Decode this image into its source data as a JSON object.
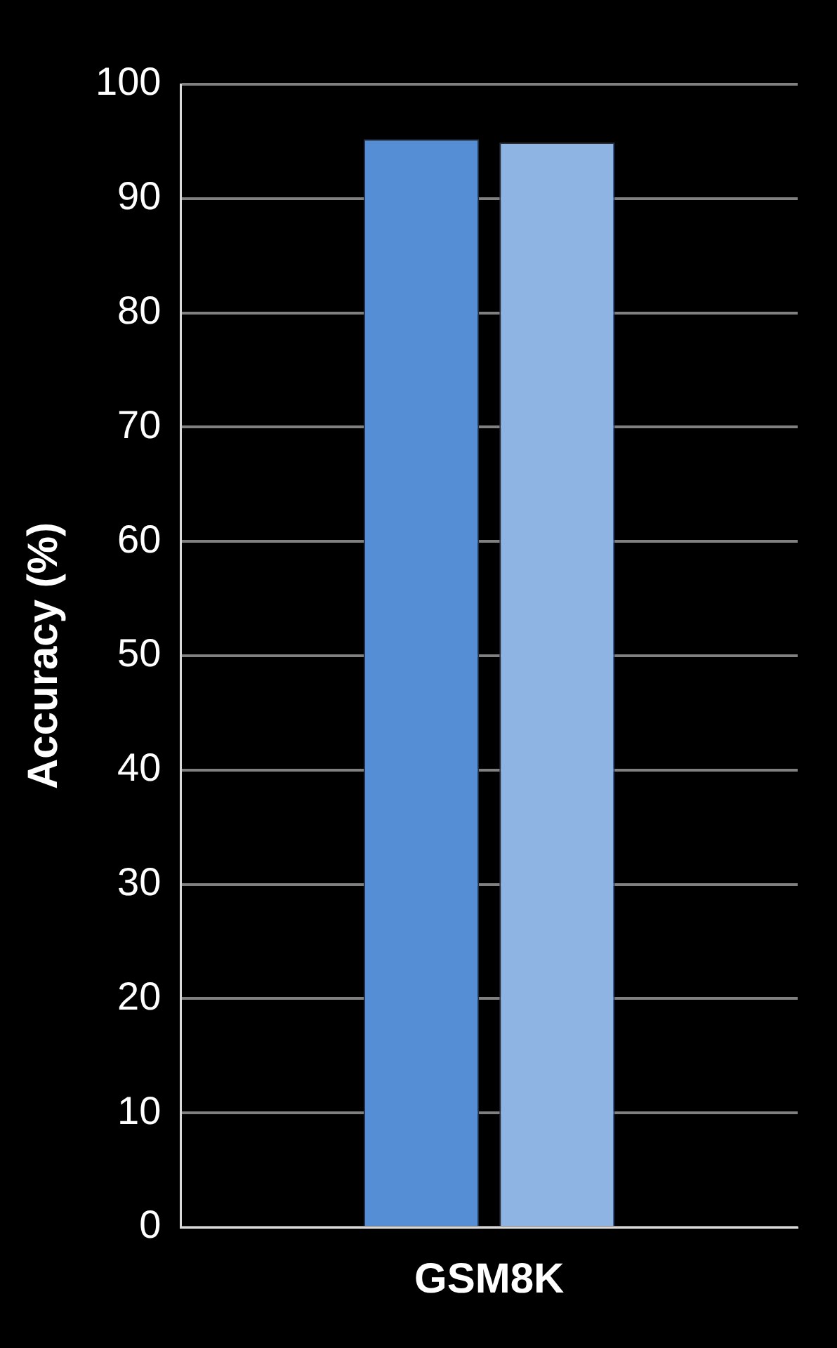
{
  "chart_data": {
    "type": "bar",
    "ylabel": "Accuracy (%)",
    "categories": [
      "GSM8K"
    ],
    "series": [
      {
        "color": "#558ed5",
        "values": [
          95.2
        ]
      },
      {
        "color": "#8eb4e3",
        "values": [
          94.9
        ]
      }
    ],
    "ylim": [
      0,
      100
    ],
    "yticks": [
      0,
      10,
      20,
      30,
      40,
      50,
      60,
      70,
      80,
      90,
      100
    ],
    "grid": "y",
    "legend": false
  }
}
